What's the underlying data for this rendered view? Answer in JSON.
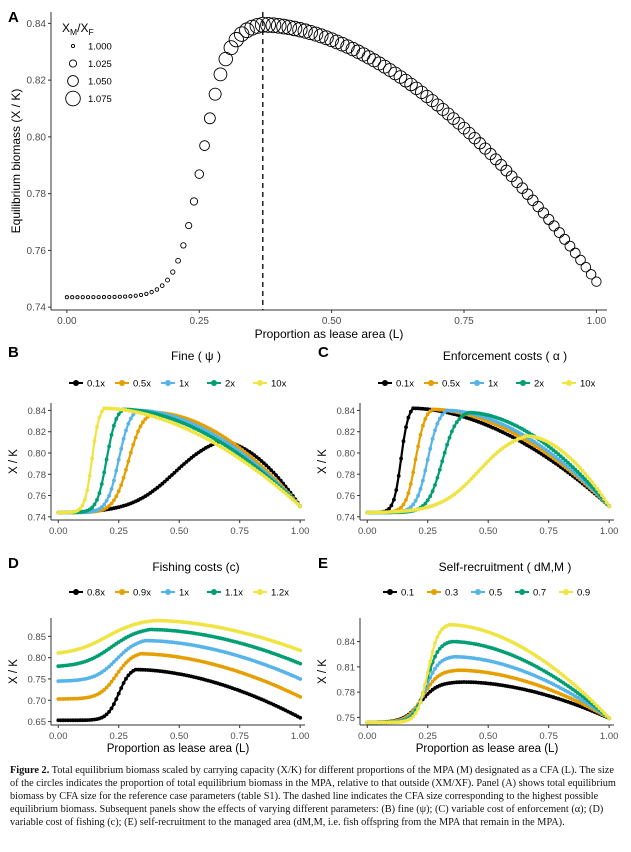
{
  "figure": {
    "caption_label": "Figure 2.",
    "caption_text": " Total equilibrium biomass scaled by carrying capacity (X/K) for different proportions of the MPA (M) designated as a CFA (L). The size of the circles indicates the proportion of total equilibrium biomass in the MPA, relative to that outside (XM/XF). Panel (A) shows total equilibrium biomass by CFA size for the reference case parameters (table S1). The dashed line indicates the CFA size corresponding to the highest possible equilibrium biomass. Subsequent panels show the effects of varying different parameters: (B) fine (ψ); (C) variable cost of enforcement (α); (D) variable cost of fishing (c); (E) self-recruitment to the managed area (dM,M, i.e. fish offspring from the MPA that remain in the MPA)."
  },
  "colors": {
    "black": "#000000",
    "orange": "#E69F00",
    "blue": "#56B4E9",
    "green": "#009E73",
    "yellow": "#F0E442"
  },
  "chart_data": [
    {
      "panel": "A",
      "type": "scatter",
      "title": "",
      "xlabel": "Proportion as lease area (L)",
      "ylabel": "Equilibrium biomass (X / K)",
      "xlim": [
        -0.03,
        1.02
      ],
      "ylim": [
        0.739,
        0.844
      ],
      "xticks": [
        "0.00",
        "0.25",
        "0.50",
        "0.75",
        "1.00"
      ],
      "yticks": [
        "0.74",
        "0.76",
        "0.78",
        "0.80",
        "0.82",
        "0.84"
      ],
      "size_legend_title": "XM/XF",
      "size_legend": [
        "1.000",
        "1.025",
        "1.050",
        "1.075"
      ],
      "vline_x": 0.37,
      "curve": {
        "xmin": 0.0,
        "xmax": 1.0,
        "base": 0.7435,
        "peak": 0.8395,
        "L0": 0.37,
        "mid": 0.255,
        "width": 0.024,
        "end": 0.749
      },
      "size_curve": {
        "base": 1.0,
        "peak": 1.085,
        "end": 1.045
      },
      "n_points": 101,
      "grid": false
    },
    {
      "panel": "B",
      "type": "line",
      "title": "Fine ( ψ )",
      "xlabel": "",
      "ylabel": "X / K",
      "xlim": [
        -0.03,
        1.02
      ],
      "ylim": [
        0.737,
        0.847
      ],
      "xticks": [
        "0.00",
        "0.25",
        "0.50",
        "0.75",
        "1.00"
      ],
      "yticks": [
        "0.74",
        "0.76",
        "0.78",
        "0.80",
        "0.82",
        "0.84"
      ],
      "legend": "top",
      "series": [
        {
          "name": "0.1x",
          "color": "black",
          "base": 0.744,
          "peak": 0.811,
          "L0": 0.67,
          "mid": 0.48,
          "width": 0.09,
          "end": 0.75
        },
        {
          "name": "0.5x",
          "color": "orange",
          "base": 0.744,
          "peak": 0.838,
          "L0": 0.4,
          "mid": 0.29,
          "width": 0.03,
          "end": 0.75
        },
        {
          "name": "1x",
          "color": "blue",
          "base": 0.744,
          "peak": 0.84,
          "L0": 0.33,
          "mid": 0.25,
          "width": 0.024,
          "end": 0.75
        },
        {
          "name": "2x",
          "color": "green",
          "base": 0.744,
          "peak": 0.841,
          "L0": 0.27,
          "mid": 0.2,
          "width": 0.02,
          "end": 0.75
        },
        {
          "name": "10x",
          "color": "yellow",
          "base": 0.744,
          "peak": 0.842,
          "L0": 0.19,
          "mid": 0.14,
          "width": 0.015,
          "end": 0.75
        }
      ]
    },
    {
      "panel": "C",
      "type": "line",
      "title": "Enforcement costs ( α )",
      "xlabel": "",
      "ylabel": "X / K",
      "xlim": [
        -0.03,
        1.02
      ],
      "ylim": [
        0.737,
        0.847
      ],
      "xticks": [
        "0.00",
        "0.25",
        "0.50",
        "0.75",
        "1.00"
      ],
      "yticks": [
        "0.74",
        "0.76",
        "0.78",
        "0.80",
        "0.82",
        "0.84"
      ],
      "legend": "top",
      "series": [
        {
          "name": "0.1x",
          "color": "black",
          "base": 0.744,
          "peak": 0.842,
          "L0": 0.19,
          "mid": 0.14,
          "width": 0.015,
          "end": 0.75
        },
        {
          "name": "0.5x",
          "color": "orange",
          "base": 0.744,
          "peak": 0.841,
          "L0": 0.27,
          "mid": 0.2,
          "width": 0.02,
          "end": 0.75
        },
        {
          "name": "1x",
          "color": "blue",
          "base": 0.744,
          "peak": 0.84,
          "L0": 0.33,
          "mid": 0.25,
          "width": 0.024,
          "end": 0.75
        },
        {
          "name": "2x",
          "color": "green",
          "base": 0.744,
          "peak": 0.838,
          "L0": 0.42,
          "mid": 0.31,
          "width": 0.03,
          "end": 0.75
        },
        {
          "name": "10x",
          "color": "yellow",
          "base": 0.744,
          "peak": 0.816,
          "L0": 0.66,
          "mid": 0.46,
          "width": 0.08,
          "end": 0.75
        }
      ]
    },
    {
      "panel": "D",
      "type": "line",
      "title": "Fishing costs (c)",
      "xlabel": "Proportion as lease area (L)",
      "ylabel": "X / K",
      "xlim": [
        -0.03,
        1.02
      ],
      "ylim": [
        0.642,
        0.893
      ],
      "xticks": [
        "0.00",
        "0.25",
        "0.50",
        "0.75",
        "1.00"
      ],
      "yticks": [
        "0.65",
        "0.70",
        "0.75",
        "0.80",
        "0.85"
      ],
      "legend": "top",
      "series": [
        {
          "name": "0.8x",
          "color": "black",
          "base": 0.653,
          "peak": 0.772,
          "L0": 0.32,
          "mid": 0.25,
          "width": 0.024,
          "end": 0.659
        },
        {
          "name": "0.9x",
          "color": "orange",
          "base": 0.703,
          "peak": 0.809,
          "L0": 0.34,
          "mid": 0.24,
          "width": 0.035,
          "end": 0.708
        },
        {
          "name": "1x",
          "color": "blue",
          "base": 0.745,
          "peak": 0.84,
          "L0": 0.36,
          "mid": 0.24,
          "width": 0.045,
          "end": 0.75
        },
        {
          "name": "1.1x",
          "color": "green",
          "base": 0.78,
          "peak": 0.866,
          "L0": 0.38,
          "mid": 0.22,
          "width": 0.06,
          "end": 0.786
        },
        {
          "name": "1.2x",
          "color": "yellow",
          "base": 0.811,
          "peak": 0.887,
          "L0": 0.4,
          "mid": 0.2,
          "width": 0.07,
          "end": 0.817
        }
      ]
    },
    {
      "panel": "E",
      "type": "line",
      "title": "Self-recruitment ( dM,M )",
      "xlabel": "Proportion as lease area (L)",
      "ylabel": "X / K",
      "xlim": [
        -0.03,
        1.02
      ],
      "ylim": [
        0.741,
        0.868
      ],
      "xticks": [
        "0.00",
        "0.25",
        "0.50",
        "0.75",
        "1.00"
      ],
      "yticks": [
        "0.75",
        "0.78",
        "0.81",
        "0.84"
      ],
      "legend": "top",
      "series": [
        {
          "name": "0.1",
          "color": "black",
          "base": 0.744,
          "peak": 0.792,
          "L0": 0.4,
          "mid": 0.22,
          "width": 0.035,
          "end": 0.749
        },
        {
          "name": "0.3",
          "color": "orange",
          "base": 0.744,
          "peak": 0.806,
          "L0": 0.38,
          "mid": 0.23,
          "width": 0.032,
          "end": 0.749
        },
        {
          "name": "0.5",
          "color": "blue",
          "base": 0.744,
          "peak": 0.822,
          "L0": 0.36,
          "mid": 0.24,
          "width": 0.028,
          "end": 0.749
        },
        {
          "name": "0.7",
          "color": "green",
          "base": 0.744,
          "peak": 0.84,
          "L0": 0.35,
          "mid": 0.245,
          "width": 0.025,
          "end": 0.749
        },
        {
          "name": "0.9",
          "color": "yellow",
          "base": 0.744,
          "peak": 0.86,
          "L0": 0.34,
          "mid": 0.25,
          "width": 0.022,
          "end": 0.749
        }
      ]
    }
  ]
}
